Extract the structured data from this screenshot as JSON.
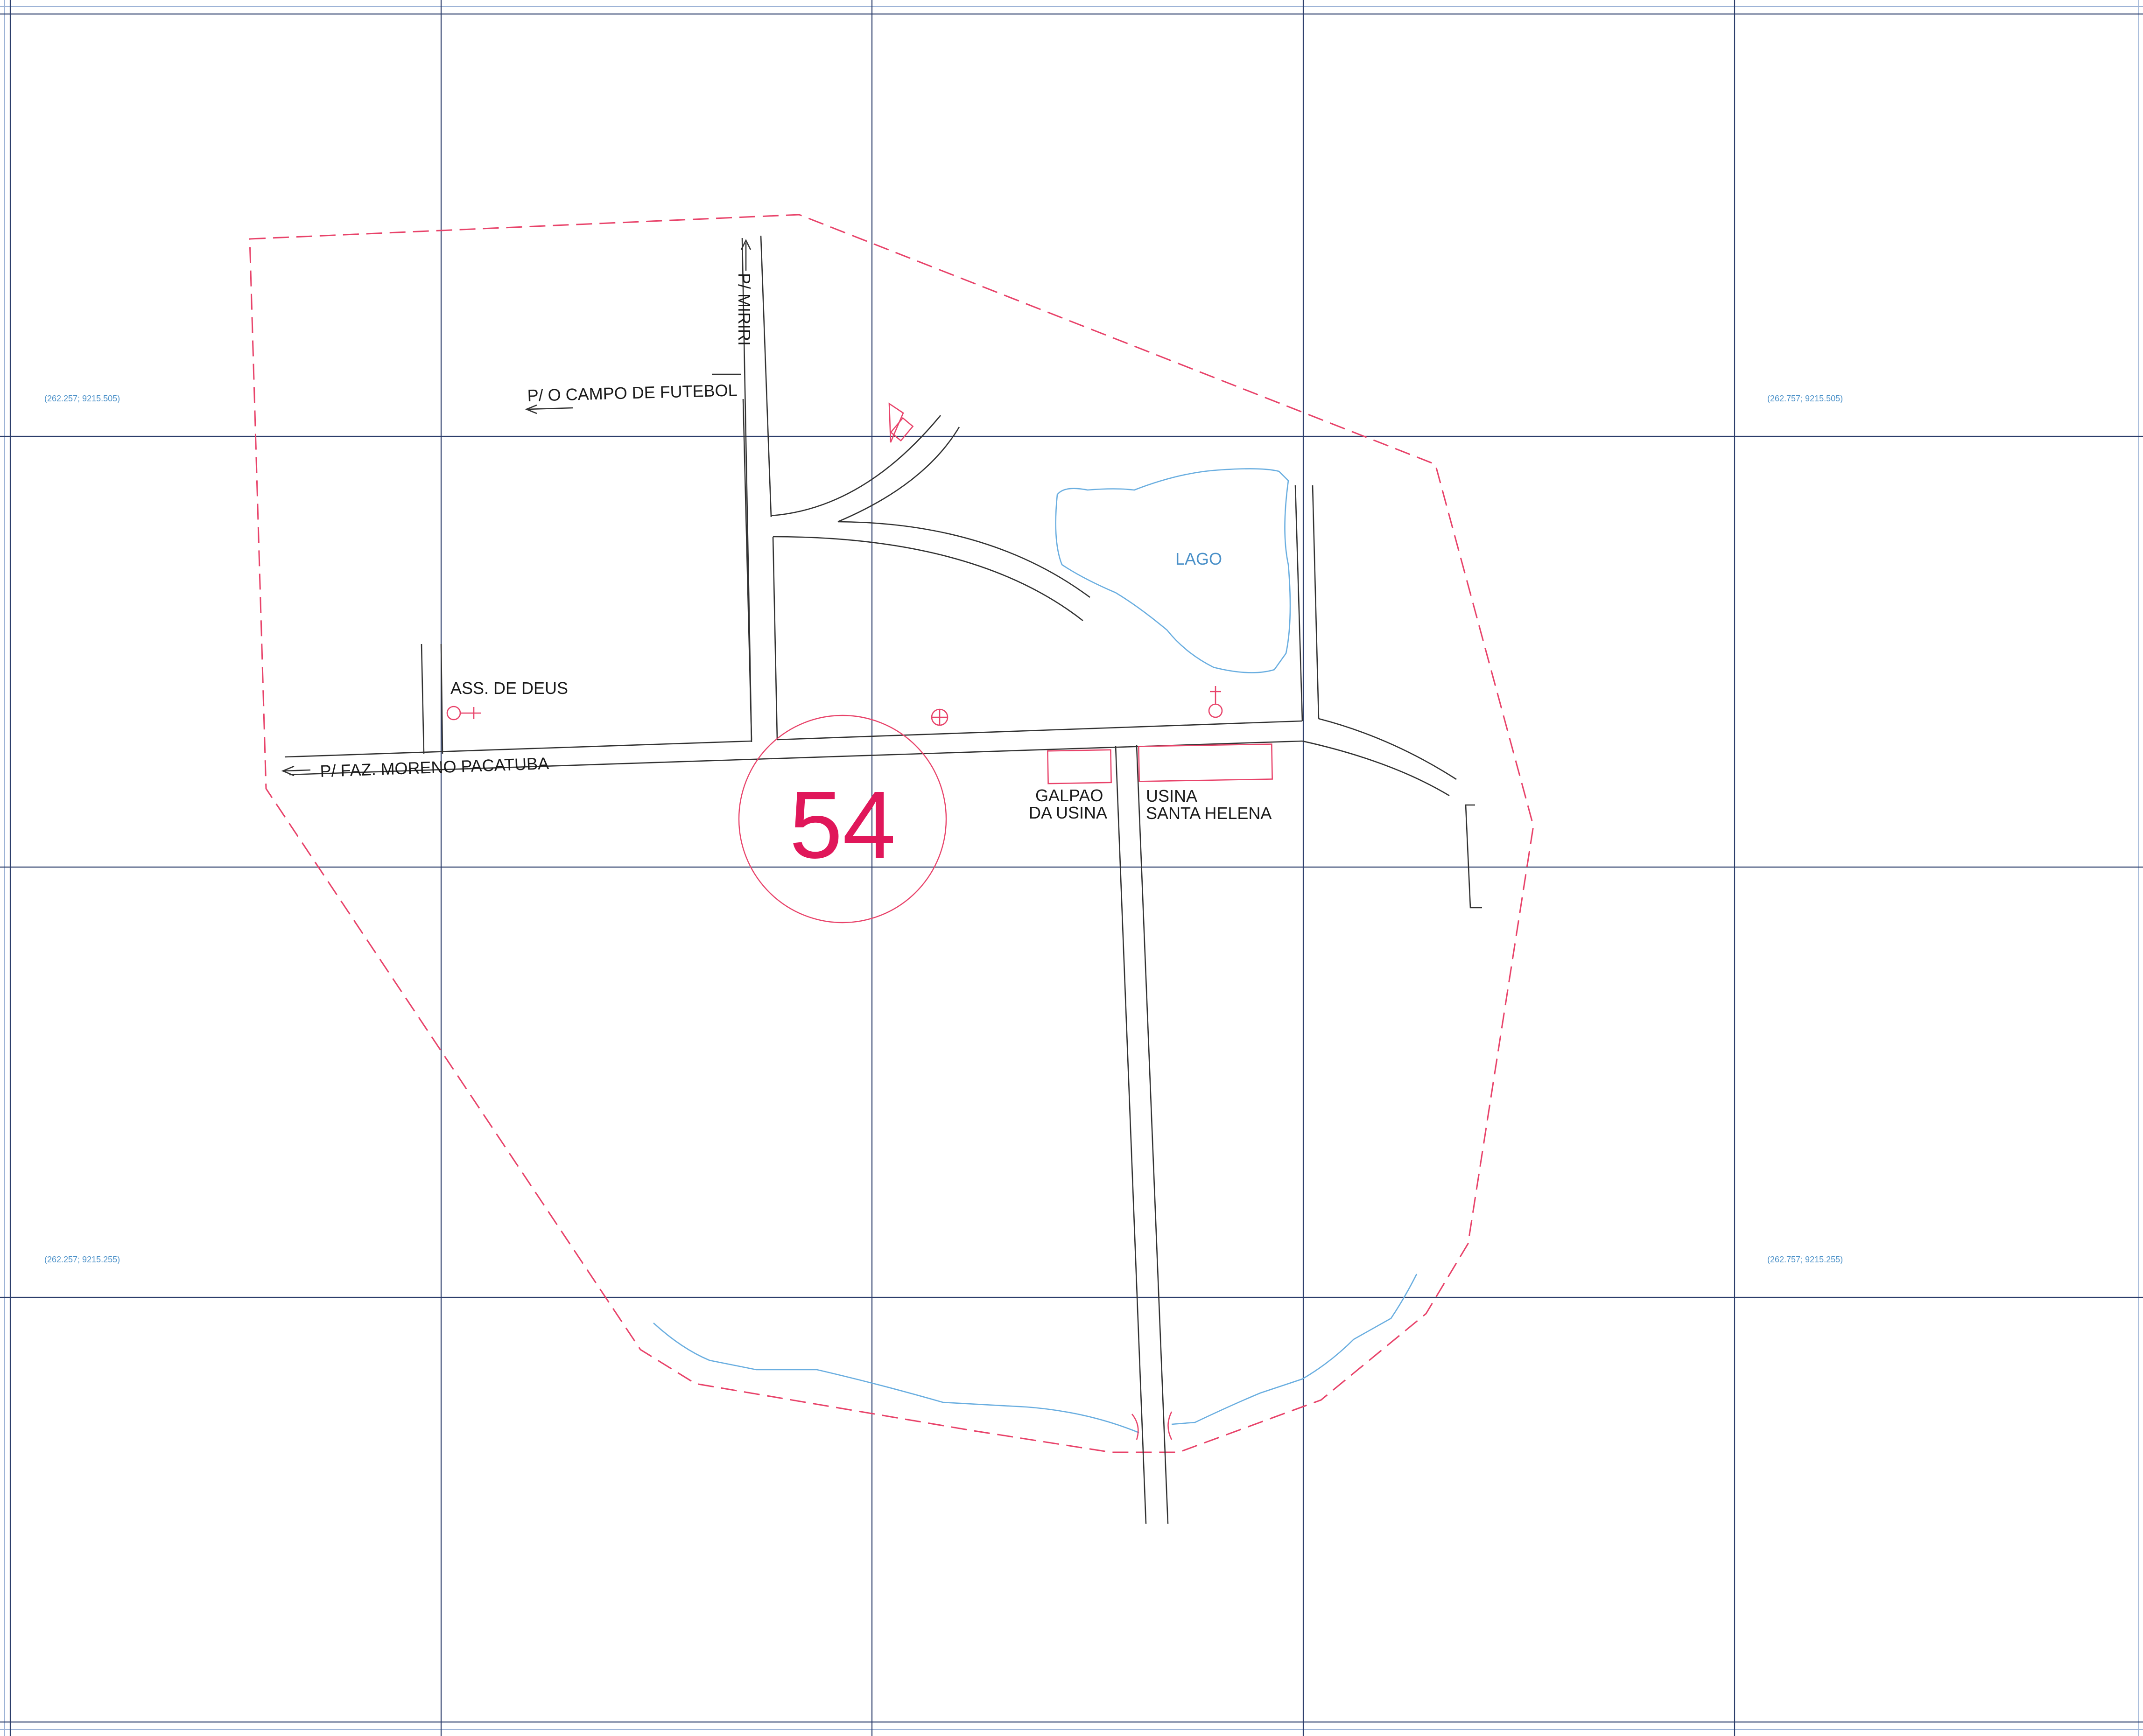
{
  "map": {
    "sector_number": "54",
    "labels": {
      "road_miriri": "P/ MIRIRI",
      "road_campo": "P/ O CAMPO DE FUTEBOL",
      "road_faz": "P/ FAZ. MORENO PACATUBA",
      "church": "ASS. DE DEUS",
      "lake": "LAGO",
      "galpao_line1": "GALPAO",
      "galpao_line2": "DA USINA",
      "usina_line1": "USINA",
      "usina_line2": "SANTA HELENA"
    },
    "coordinates": {
      "top_left": "(262.257; 9215.505)",
      "top_right": "(262.757; 9215.505)",
      "bottom_left": "(262.257; 9215.255)",
      "bottom_right": "(262.757; 9215.255)"
    },
    "colors": {
      "boundary": "#e8436a",
      "water": "#6aaee0",
      "roads": "#333333",
      "grid": "#2c3e6b"
    },
    "icons": [
      "church-symbol",
      "cemetery-symbol",
      "landmark-circle-cross",
      "tower-symbol"
    ]
  }
}
